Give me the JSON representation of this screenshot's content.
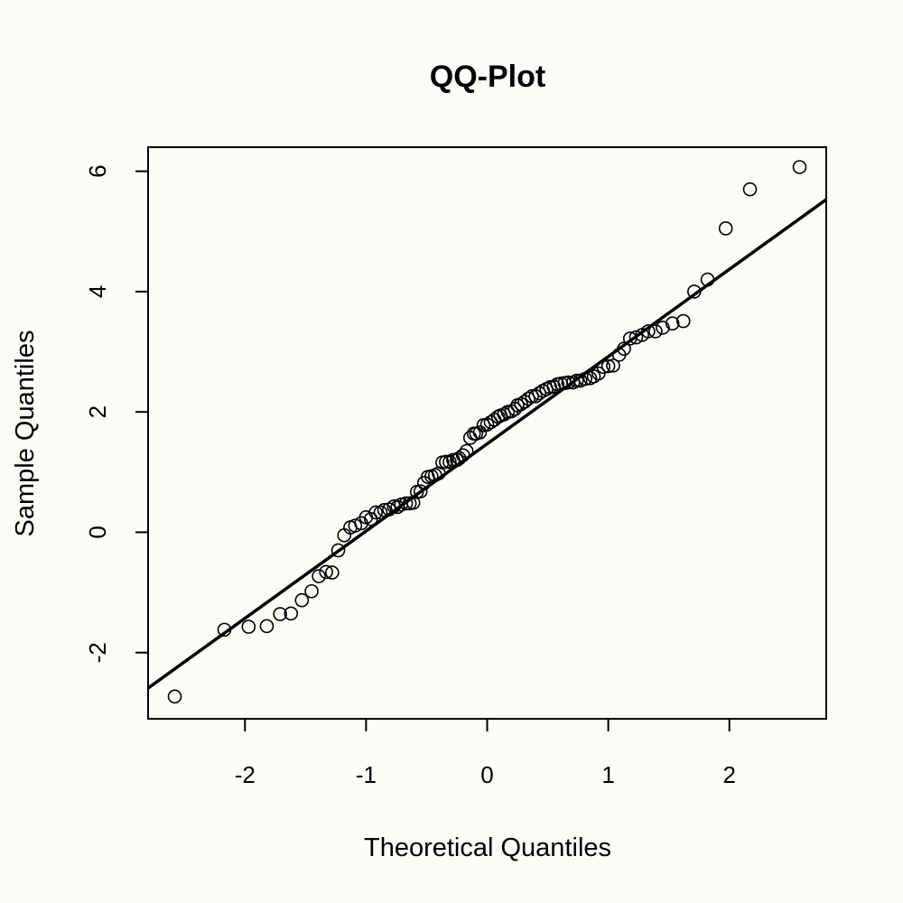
{
  "chart_data": {
    "type": "scatter",
    "title": "QQ-Plot",
    "xlabel": "Theoretical Quantiles",
    "ylabel": "Sample Quantiles",
    "xlim": [
      -2.8,
      2.8
    ],
    "ylim": [
      -3.1,
      6.4
    ],
    "xticks": [
      -2,
      -1,
      0,
      1,
      2
    ],
    "xtick_labels": [
      "-2",
      "-1",
      "0",
      "1",
      "2"
    ],
    "yticks": [
      -2,
      0,
      2,
      4,
      6
    ],
    "ytick_labels": [
      "-2",
      "0",
      "2",
      "4",
      "6"
    ],
    "grid": false,
    "legend": "none",
    "colors": {
      "background": "#fdfcf8",
      "ink": "#000000"
    },
    "reference_line": {
      "slope": 1.45,
      "intercept": 1.47
    },
    "series": [
      {
        "x": [
          -2.58,
          -2.17,
          -1.97,
          -1.82,
          -1.71,
          -1.62,
          -1.53,
          -1.45,
          -1.39,
          -1.33,
          -1.28,
          -1.23,
          -1.18,
          -1.13,
          -1.09,
          -1.04,
          -1.0,
          -0.96,
          -0.92,
          -0.88,
          -0.85,
          -0.81,
          -0.77,
          -0.74,
          -0.71,
          -0.67,
          -0.64,
          -0.61,
          -0.58,
          -0.55,
          -0.52,
          -0.49,
          -0.46,
          -0.43,
          -0.4,
          -0.37,
          -0.34,
          -0.31,
          -0.28,
          -0.25,
          -0.23,
          -0.2,
          -0.17,
          -0.14,
          -0.11,
          -0.09,
          -0.06,
          -0.03,
          0.0,
          0.03,
          0.06,
          0.09,
          0.11,
          0.14,
          0.17,
          0.2,
          0.23,
          0.25,
          0.28,
          0.31,
          0.34,
          0.37,
          0.4,
          0.43,
          0.46,
          0.49,
          0.52,
          0.55,
          0.58,
          0.61,
          0.64,
          0.67,
          0.71,
          0.74,
          0.77,
          0.81,
          0.85,
          0.88,
          0.92,
          0.96,
          1.0,
          1.04,
          1.09,
          1.13,
          1.18,
          1.23,
          1.28,
          1.33,
          1.39,
          1.45,
          1.53,
          1.62,
          1.71,
          1.82,
          1.97,
          2.17,
          2.58
        ],
        "y": [
          -2.73,
          -1.62,
          -1.57,
          -1.56,
          -1.36,
          -1.35,
          -1.13,
          -0.98,
          -0.73,
          -0.66,
          -0.67,
          -0.3,
          -0.05,
          0.08,
          0.11,
          0.15,
          0.25,
          0.22,
          0.33,
          0.33,
          0.37,
          0.38,
          0.43,
          0.42,
          0.46,
          0.48,
          0.48,
          0.49,
          0.67,
          0.68,
          0.82,
          0.92,
          0.93,
          0.95,
          0.98,
          1.16,
          1.17,
          1.17,
          1.2,
          1.2,
          1.23,
          1.28,
          1.35,
          1.57,
          1.64,
          1.64,
          1.66,
          1.78,
          1.79,
          1.83,
          1.87,
          1.92,
          1.94,
          1.96,
          2.0,
          2.01,
          2.05,
          2.11,
          2.13,
          2.17,
          2.22,
          2.26,
          2.26,
          2.31,
          2.35,
          2.38,
          2.41,
          2.42,
          2.46,
          2.47,
          2.48,
          2.49,
          2.49,
          2.52,
          2.52,
          2.55,
          2.56,
          2.59,
          2.64,
          2.75,
          2.76,
          2.77,
          2.95,
          3.05,
          3.22,
          3.24,
          3.28,
          3.34,
          3.34,
          3.4,
          3.47,
          3.51,
          4.0,
          4.2,
          5.05,
          5.7,
          6.07
        ]
      }
    ]
  }
}
